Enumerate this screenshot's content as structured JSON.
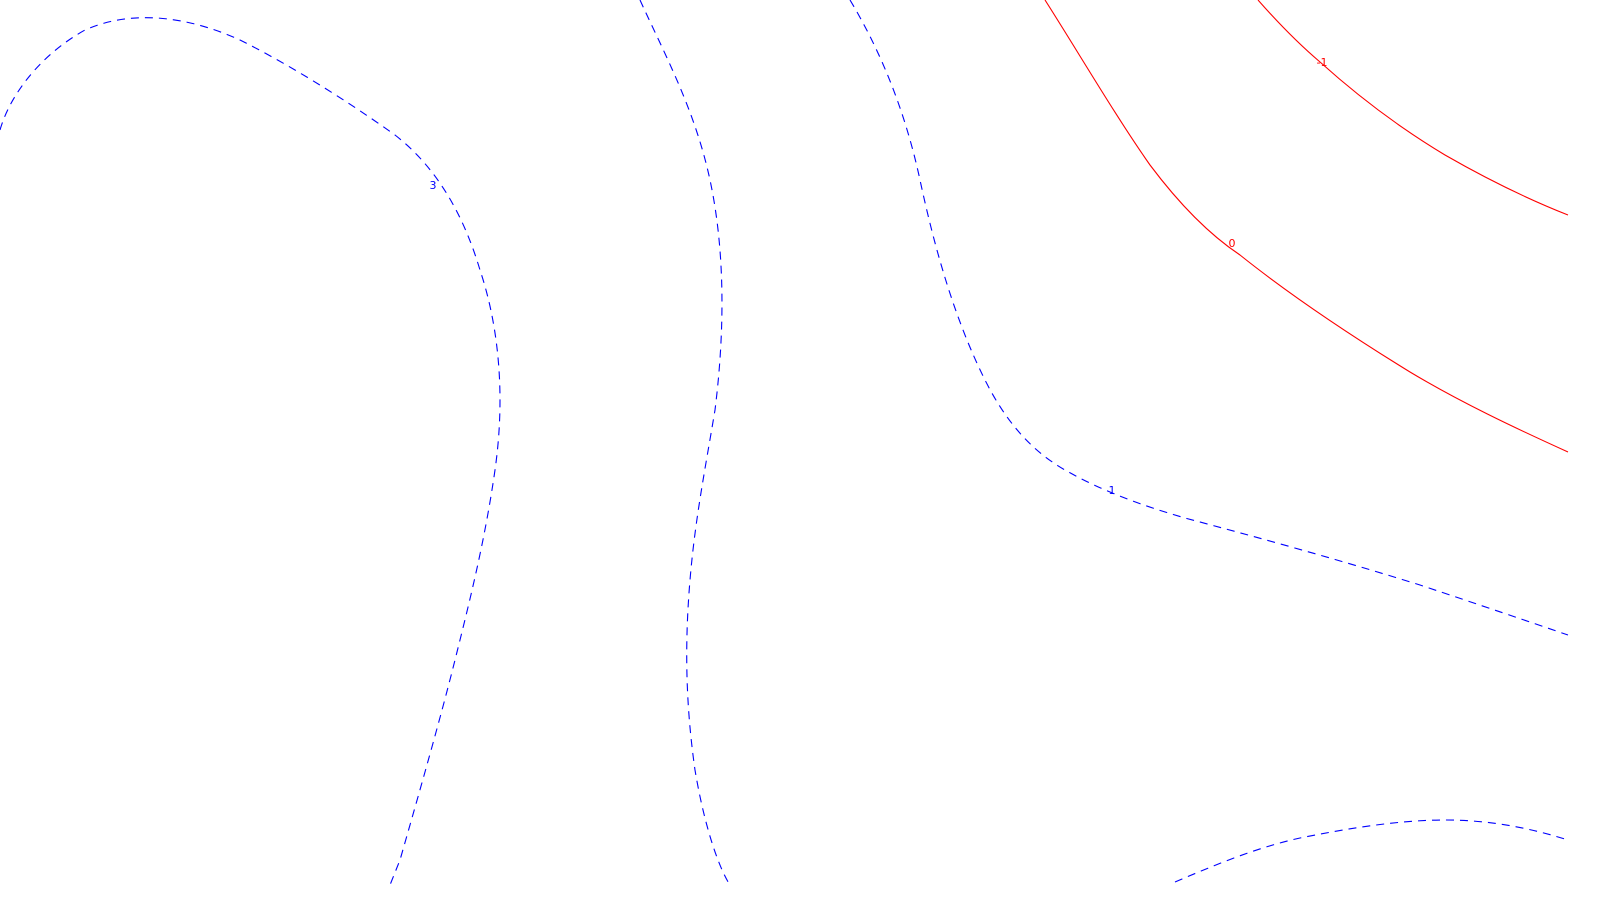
{
  "map": {
    "type": "contour-map",
    "colors": {
      "negative_and_zero": "#ff0000",
      "positive": "#0000ff",
      "background": "#ffffff"
    },
    "line_styles": {
      "negative_and_zero": "solid",
      "positive": "dashed"
    },
    "contours": [
      {
        "level": "3",
        "color": "#0000ff",
        "style": "dashed"
      },
      {
        "level": "",
        "color": "#0000ff",
        "style": "dashed"
      },
      {
        "level": "1",
        "color": "#0000ff",
        "style": "dashed"
      },
      {
        "level": "0",
        "color": "#ff0000",
        "style": "solid"
      },
      {
        "level": "-1",
        "color": "#ff0000",
        "style": "solid"
      },
      {
        "level": "",
        "color": "#0000ff",
        "style": "dashed"
      }
    ]
  }
}
